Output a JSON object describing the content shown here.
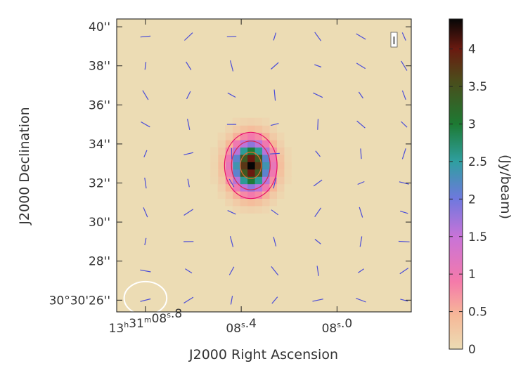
{
  "chart_data": {
    "type": "heatmap",
    "title": "",
    "xlabel": "J2000 Right Ascension",
    "ylabel": "J2000 Declination",
    "stokes_marker": "I",
    "x_ticks": [
      {
        "h": "13",
        "m": "31",
        "s": "08",
        "frac": ".8",
        "full": true,
        "value": 8.8
      },
      {
        "s": "08",
        "frac": ".4",
        "full": false,
        "value": 8.4
      },
      {
        "s": "08",
        "frac": ".0",
        "full": false,
        "value": 8.0
      }
    ],
    "x_range_s": [
      8.92,
      7.69
    ],
    "y_ticks": [
      {
        "label": "30°30'26''",
        "value": 26
      },
      {
        "label": "28''",
        "value": 28
      },
      {
        "label": "30''",
        "value": 30
      },
      {
        "label": "32''",
        "value": 32
      },
      {
        "label": "34''",
        "value": 34
      },
      {
        "label": "36''",
        "value": 36
      },
      {
        "label": "38''",
        "value": 38
      },
      {
        "label": "40''",
        "value": 40
      }
    ],
    "y_range_arcsec": [
      25.4,
      40.4
    ],
    "colorbar": {
      "label": "(Jy/beam)",
      "min": 0,
      "max": 4.4,
      "ticks": [
        {
          "label": "0",
          "value": 0
        },
        {
          "label": "0.5",
          "value": 0.5
        },
        {
          "label": "1",
          "value": 1
        },
        {
          "label": "1.5",
          "value": 1.5
        },
        {
          "label": "2",
          "value": 2
        },
        {
          "label": "2.5",
          "value": 2.5
        },
        {
          "label": "3",
          "value": 3
        },
        {
          "label": "3.5",
          "value": 3.5
        },
        {
          "label": "4",
          "value": 4
        }
      ],
      "stops": [
        {
          "v": 0,
          "color": "#ecdcb4"
        },
        {
          "v": 0.45,
          "color": "#f6b898"
        },
        {
          "v": 0.9,
          "color": "#f57aaa"
        },
        {
          "v": 1.5,
          "color": "#c873d8"
        },
        {
          "v": 2.0,
          "color": "#6f78de"
        },
        {
          "v": 2.5,
          "color": "#2f9fa0"
        },
        {
          "v": 3.0,
          "color": "#1d7a33"
        },
        {
          "v": 3.6,
          "color": "#4d4a1a"
        },
        {
          "v": 4.0,
          "color": "#6a1a10"
        },
        {
          "v": 4.4,
          "color": "#060606"
        }
      ]
    },
    "source": {
      "ra_s": 8.36,
      "dec_arcsec": 32.9,
      "peak": 4.4,
      "sigma_ra_s": 0.055,
      "sigma_dec_arcsec": 0.85
    },
    "contours": [
      {
        "level": 0.6,
        "color": "#e8106a"
      },
      {
        "level": 1.5,
        "color": "#d82850"
      },
      {
        "level": 3.2,
        "color": "#e06a30"
      }
    ],
    "beam": {
      "ra_s": 8.8,
      "dec_arcsec": 26.1,
      "major_arcsec": 2.3,
      "minor_arcsec": 1.7,
      "color": "#ffffff"
    },
    "vector_color": "#4a4cd8",
    "vector_grid": {
      "ra_s": [
        8.8,
        8.62,
        8.44,
        8.26,
        8.08,
        7.9,
        7.72
      ],
      "dec_arcsec": [
        26.0,
        27.5,
        29.0,
        30.5,
        32.0,
        33.5,
        35.0,
        36.5,
        38.0,
        39.5
      ]
    },
    "pixel_grid": {
      "ra_step_s": 0.0307,
      "dec_step_arcsec": 0.375
    }
  }
}
